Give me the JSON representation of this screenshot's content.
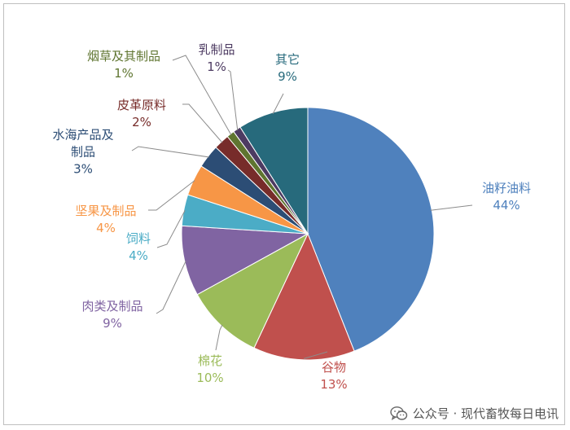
{
  "chart_data": {
    "type": "pie",
    "categories": [
      "油籽油料",
      "谷物",
      "棉花",
      "肉类及制品",
      "饲料",
      "坚果及制品",
      "水海产品及制品",
      "皮革原料",
      "烟草及其制品",
      "乳制品",
      "其它"
    ],
    "values": [
      44,
      13,
      10,
      9,
      4,
      4,
      3,
      2,
      1,
      1,
      9
    ],
    "labels": [
      [
        "油籽油料"
      ],
      [
        "谷物"
      ],
      [
        "棉花"
      ],
      [
        "肉类及制品"
      ],
      [
        "饲料"
      ],
      [
        "坚果及制品"
      ],
      [
        "水海产品及",
        "制品"
      ],
      [
        "皮革原料"
      ],
      [
        "烟草及其制品"
      ],
      [
        "乳制品"
      ],
      [
        "其它"
      ]
    ],
    "value_labels": [
      "44%",
      "13%",
      "10%",
      "9%",
      "4%",
      "4%",
      "3%",
      "2%",
      "1%",
      "1%",
      "9%"
    ],
    "slice_colors": [
      "#4f81bd",
      "#c0504d",
      "#9bbb59",
      "#8064a2",
      "#4bacc6",
      "#f79646",
      "#2c4d75",
      "#772c2a",
      "#5f7530",
      "#4d3b62",
      "#276a7c"
    ],
    "label_colors": [
      "#4f81bd",
      "#c0504d",
      "#9bbb59",
      "#8064a2",
      "#4bacc6",
      "#f79646",
      "#2c4d75",
      "#772c2a",
      "#5f7530",
      "#4d3b62",
      "#276a7c"
    ],
    "start_angle": "12 o'clock",
    "direction": "clockwise",
    "legend": "none"
  },
  "watermark": {
    "icon": "wechat-icon",
    "text": "公众号 · 现代畜牧每日电讯"
  }
}
